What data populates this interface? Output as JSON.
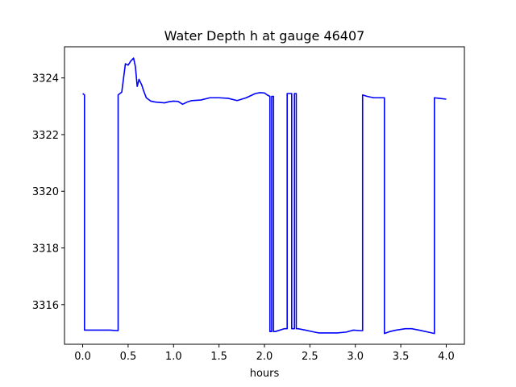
{
  "chart_data": {
    "type": "line",
    "title": "Water Depth h at gauge 46407",
    "xlabel": "hours",
    "ylabel": "",
    "xlim": [
      -0.2,
      4.2
    ],
    "ylim": [
      3314.6,
      3325.1
    ],
    "xticks": [
      0.0,
      0.5,
      1.0,
      1.5,
      2.0,
      2.5,
      3.0,
      3.5,
      4.0
    ],
    "xtick_labels": [
      "0.0",
      "0.5",
      "1.0",
      "1.5",
      "2.0",
      "2.5",
      "3.0",
      "3.5",
      "4.0"
    ],
    "yticks": [
      3316,
      3318,
      3320,
      3322,
      3324
    ],
    "ytick_labels": [
      "3316",
      "3318",
      "3320",
      "3322",
      "3324"
    ],
    "grid": false,
    "line_color": "#0000ff",
    "series": [
      {
        "x": [
          0.0,
          0.02,
          0.02,
          0.2,
          0.3,
          0.39,
          0.39,
          0.43,
          0.47,
          0.5,
          0.53,
          0.56,
          0.58,
          0.6,
          0.62,
          0.65,
          0.67,
          0.7,
          0.75,
          0.8,
          0.9,
          0.95,
          1.0,
          1.05,
          1.1,
          1.15,
          1.2,
          1.3,
          1.4,
          1.5,
          1.6,
          1.7,
          1.8,
          1.9,
          1.95,
          2.0,
          2.03,
          2.06,
          2.06,
          2.08,
          2.08,
          2.1,
          2.1,
          2.12,
          2.17,
          2.22,
          2.25,
          2.25,
          2.28,
          2.3,
          2.3,
          2.33,
          2.33,
          2.35,
          2.35,
          2.37,
          2.37,
          2.45,
          2.55,
          2.6,
          2.7,
          2.8,
          2.9,
          2.98,
          3.05,
          3.08,
          3.08,
          3.13,
          3.2,
          3.3,
          3.32,
          3.32,
          3.38,
          3.45,
          3.55,
          3.62,
          3.7,
          3.8,
          3.87,
          3.87,
          3.92,
          4.0
        ],
        "y": [
          3323.45,
          3323.4,
          3315.1,
          3315.1,
          3315.1,
          3315.08,
          3323.4,
          3323.5,
          3324.5,
          3324.45,
          3324.6,
          3324.7,
          3324.4,
          3323.7,
          3323.95,
          3323.75,
          3323.55,
          3323.3,
          3323.18,
          3323.15,
          3323.12,
          3323.16,
          3323.18,
          3323.17,
          3323.07,
          3323.15,
          3323.2,
          3323.22,
          3323.3,
          3323.3,
          3323.28,
          3323.2,
          3323.3,
          3323.45,
          3323.48,
          3323.47,
          3323.4,
          3323.35,
          3315.05,
          3315.05,
          3323.35,
          3323.35,
          3315.05,
          3315.05,
          3315.1,
          3315.15,
          3315.15,
          3323.45,
          3323.45,
          3323.45,
          3315.15,
          3315.15,
          3323.45,
          3323.45,
          3315.15,
          3315.15,
          3315.15,
          3315.1,
          3315.03,
          3315.0,
          3315.0,
          3315.0,
          3315.03,
          3315.1,
          3315.08,
          3315.08,
          3323.4,
          3323.35,
          3323.3,
          3323.3,
          3323.3,
          3314.98,
          3315.05,
          3315.1,
          3315.15,
          3315.15,
          3315.1,
          3315.03,
          3314.98,
          3323.3,
          3323.28,
          3323.25
        ]
      }
    ]
  }
}
